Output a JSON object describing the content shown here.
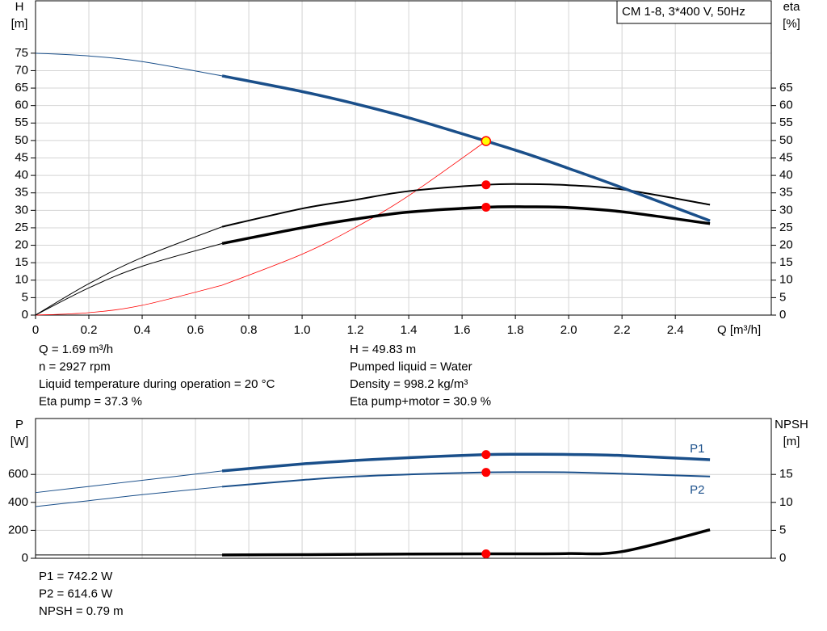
{
  "chart_data": [
    {
      "type": "line",
      "title": "CM 1-8, 3*400 V, 50Hz",
      "ylabel": "H",
      "yunit": "[m]",
      "y2label": "eta",
      "y2unit": "[%]",
      "xlabel": "Q [m³/h]",
      "x": [
        0,
        0.2,
        0.4,
        0.7,
        1.0,
        1.2,
        1.4,
        1.69,
        1.85,
        2.0,
        2.2,
        2.53
      ],
      "xlim": [
        0,
        2.76
      ],
      "xticks": [
        0,
        0.2,
        0.4,
        0.6,
        0.8,
        {
          "value": 1,
          "label": "1.0"
        },
        1.2,
        1.4,
        1.6,
        1.8,
        {
          "value": 2,
          "label": "2.0"
        },
        2.2,
        2.4
      ],
      "ylim": [
        0,
        90
      ],
      "yticks": [
        0,
        5,
        10,
        15,
        20,
        25,
        30,
        35,
        40,
        45,
        50,
        55,
        60,
        65,
        70,
        75
      ],
      "y2lim": [
        0,
        90
      ],
      "y2ticks": [
        0,
        5,
        10,
        15,
        20,
        25,
        30,
        35,
        40,
        45,
        50,
        55,
        60,
        65
      ],
      "grid": true,
      "operating_range": [
        0.7,
        2.53
      ],
      "duty_x": 1.69,
      "series": [
        {
          "color": "#ff0000",
          "line_width": [
            0.8,
            0.8
          ],
          "values": [
            0,
            0.7,
            2.8,
            8.55,
            17.45,
            25.1,
            34.2,
            49.83,
            null,
            null,
            null,
            null
          ]
        },
        {
          "color": "#000000",
          "line_width": [
            1,
            2
          ],
          "axis": "y2",
          "marker_color": "#ff0000",
          "values": [
            0,
            9,
            16.5,
            25.3,
            30.5,
            33,
            35.5,
            37.3,
            37.5,
            37.2,
            36,
            31.6
          ]
        },
        {
          "color": "#000000",
          "line_width": [
            1,
            3.5
          ],
          "axis": "y2",
          "marker_color": "#ff0000",
          "values": [
            0,
            7.8,
            14,
            20.5,
            25,
            27.5,
            29.5,
            30.9,
            31,
            30.8,
            29.6,
            26.2
          ]
        },
        {
          "color": "#1a4f8a",
          "line_width": [
            1,
            3.5
          ],
          "marker_color": "#ffff00",
          "marker_edge": "#ff0000",
          "values": [
            75,
            74.2,
            72.6,
            68.5,
            64,
            60.5,
            56.5,
            49.83,
            46,
            42,
            36.5,
            27
          ]
        }
      ],
      "info": [
        [
          "Q = 1.69 m³/h",
          "n = 2927 rpm",
          "Liquid temperature during operation = 20 °C",
          "Eta pump = 37.3 %"
        ],
        [
          "H = 49.83 m",
          "Pumped liquid = Water",
          "Density = 998.2 kg/m³",
          "Eta pump+motor = 30.9 %"
        ]
      ]
    },
    {
      "type": "line",
      "ylabel": "P",
      "yunit": "[W]",
      "y2label": "NPSH",
      "y2unit": "[m]",
      "x": [
        0,
        0.2,
        0.4,
        0.7,
        1.0,
        1.2,
        1.4,
        1.69,
        1.85,
        2.0,
        2.2,
        2.53
      ],
      "xlim": [
        0,
        2.76
      ],
      "ylim": [
        0,
        1000
      ],
      "yticks": [
        0,
        200,
        400,
        600
      ],
      "y2lim": [
        0,
        25
      ],
      "y2ticks": [
        0,
        5,
        10,
        15
      ],
      "grid": true,
      "operating_range": [
        0.7,
        2.53
      ],
      "duty_x": 1.69,
      "series": [
        {
          "name": "P1",
          "label_position": "above",
          "color": "#1a4f8a",
          "line_width": [
            1,
            3.5
          ],
          "marker_color": "#ff0000",
          "values": [
            470,
            514,
            558,
            625,
            675,
            700,
            720,
            742.2,
            744,
            743,
            735,
            705
          ]
        },
        {
          "name": "P2",
          "label_position": "below",
          "color": "#1a4f8a",
          "line_width": [
            1,
            2
          ],
          "marker_color": "#ff0000",
          "values": [
            370,
            412,
            455,
            512,
            560,
            585,
            600,
            614.6,
            616,
            615,
            605,
            585
          ]
        },
        {
          "color": "#000000",
          "line_width": [
            1,
            3.5
          ],
          "axis": "y2",
          "marker_color": "#ff0000",
          "values": [
            0.6,
            0.6,
            0.6,
            0.6,
            0.65,
            0.7,
            0.75,
            0.79,
            0.8,
            0.85,
            1.2,
            5.1
          ]
        }
      ],
      "info": [
        [
          "P1 = 742.2 W",
          "P2 = 614.6 W",
          "NPSH = 0.79 m"
        ]
      ]
    }
  ]
}
